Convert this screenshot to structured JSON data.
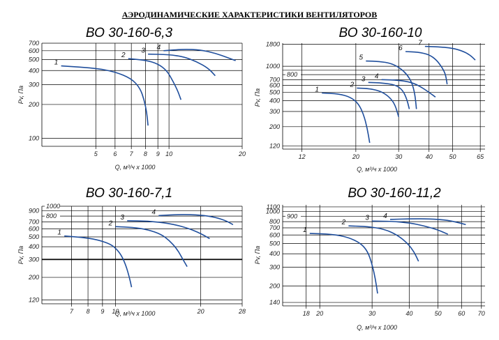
{
  "page_title": "АЭРОДИНАМИЧЕСКИЕ  ХАРАКТЕРИСТИКИ ВЕНТИЛЯТОРОВ",
  "colors": {
    "curve": "#1f4e9c",
    "grid": "#000000",
    "text": "#222222"
  },
  "chart_data": [
    {
      "type": "line",
      "title": "ВО 30-160-6,3",
      "xlabel": "Q, м³/ч х 1000",
      "ylabel": "Pv, Па",
      "x_scale": "log",
      "y_scale": "log",
      "xlim": [
        3,
        20
      ],
      "ylim": [
        85,
        700
      ],
      "x_ticks": [
        5,
        6,
        7,
        8,
        9,
        10,
        20
      ],
      "x_tick_labels": [
        "5",
        "6",
        "7",
        "8",
        "9",
        "10",
        "20"
      ],
      "y_ticks": [
        100,
        200,
        300,
        400,
        500,
        600,
        700
      ],
      "y_tick_labels": [
        "100",
        "200",
        "300",
        "400",
        "500",
        "600",
        "700"
      ],
      "y_lines_extra": [],
      "series": [
        {
          "name": "1",
          "points": [
            [
              3.6,
              440
            ],
            [
              5.0,
              420
            ],
            [
              6.0,
              390
            ],
            [
              7.0,
              340
            ],
            [
              7.6,
              280
            ],
            [
              7.9,
              220
            ],
            [
              8.1,
              170
            ],
            [
              8.2,
              130
            ]
          ]
        },
        {
          "name": "2",
          "points": [
            [
              6.8,
              510
            ],
            [
              8.0,
              495
            ],
            [
              9.0,
              460
            ],
            [
              9.8,
              400
            ],
            [
              10.4,
              320
            ],
            [
              10.9,
              260
            ],
            [
              11.2,
              220
            ]
          ]
        },
        {
          "name": "3",
          "points": [
            [
              8.2,
              560
            ],
            [
              10.0,
              555
            ],
            [
              11.5,
              530
            ],
            [
              13.0,
              480
            ],
            [
              14.5,
              420
            ],
            [
              15.5,
              360
            ]
          ]
        },
        {
          "name": "4",
          "points": [
            [
              9.5,
              600
            ],
            [
              11.5,
              620
            ],
            [
              13.5,
              610
            ],
            [
              15.5,
              570
            ],
            [
              17.5,
              520
            ],
            [
              18.8,
              490
            ]
          ]
        }
      ]
    },
    {
      "type": "line",
      "title": "ВО 30-160-10",
      "xlabel": "Q, м³/ч х 1000",
      "ylabel": "Pv, Па",
      "x_scale": "log",
      "y_scale": "log",
      "xlim": [
        10,
        68
      ],
      "ylim": [
        110,
        1850
      ],
      "x_ticks": [
        12,
        20,
        30,
        40,
        50,
        65
      ],
      "x_tick_labels": [
        "12",
        "20",
        "30",
        "40",
        "50",
        "65"
      ],
      "y_ticks": [
        120,
        200,
        300,
        400,
        500,
        600,
        700,
        1000,
        1800
      ],
      "y_tick_labels": [
        "120",
        "200",
        "300",
        "400",
        "500",
        "600",
        "700",
        "1000",
        "1800"
      ],
      "y_lines_extra": [
        {
          "value": 800,
          "label": "800"
        },
        {
          "value": 900,
          "label": ""
        }
      ],
      "series": [
        {
          "name": "1",
          "points": [
            [
              14.5,
              490
            ],
            [
              17.0,
              480
            ],
            [
              19.0,
              440
            ],
            [
              20.5,
              370
            ],
            [
              21.5,
              280
            ],
            [
              22.3,
              190
            ],
            [
              22.8,
              130
            ]
          ]
        },
        {
          "name": "2",
          "points": [
            [
              20.2,
              560
            ],
            [
              23.0,
              550
            ],
            [
              25.5,
              510
            ],
            [
              27.5,
              440
            ],
            [
              29.0,
              360
            ],
            [
              30.0,
              260
            ]
          ]
        },
        {
          "name": "3",
          "points": [
            [
              22.5,
              650
            ],
            [
              26.0,
              640
            ],
            [
              29.0,
              610
            ],
            [
              31.0,
              540
            ],
            [
              32.3,
              430
            ],
            [
              33.2,
              320
            ]
          ]
        },
        {
          "name": "4",
          "points": [
            [
              25.5,
              700
            ],
            [
              30.0,
              690
            ],
            [
              34.0,
              650
            ],
            [
              37.0,
              580
            ],
            [
              40.0,
              500
            ],
            [
              42.5,
              440
            ]
          ]
        },
        {
          "name": "5",
          "points": [
            [
              22.0,
              1150
            ],
            [
              25.0,
              1140
            ],
            [
              28.0,
              1080
            ],
            [
              30.5,
              950
            ],
            [
              32.5,
              800
            ],
            [
              34.0,
              650
            ],
            [
              35.0,
              480
            ],
            [
              35.5,
              320
            ]
          ]
        },
        {
          "name": "6",
          "points": [
            [
              32.0,
              1480
            ],
            [
              36.0,
              1460
            ],
            [
              40.0,
              1370
            ],
            [
              43.0,
              1180
            ],
            [
              45.5,
              950
            ],
            [
              46.8,
              800
            ],
            [
              47.5,
              620
            ]
          ]
        },
        {
          "name": "7",
          "points": [
            [
              38.5,
              1700
            ],
            [
              44.0,
              1680
            ],
            [
              50.0,
              1620
            ],
            [
              55.0,
              1500
            ],
            [
              59.0,
              1350
            ],
            [
              62.0,
              1180
            ]
          ]
        }
      ]
    },
    {
      "type": "line",
      "title": "ВО 30-160-7,1",
      "xlabel": "Q, м³/ч х 1000",
      "ylabel": "Pv, Па",
      "x_scale": "log",
      "y_scale": "log",
      "xlim": [
        5.5,
        28
      ],
      "ylim": [
        110,
        1000
      ],
      "x_ticks": [
        7,
        8,
        9,
        10,
        20,
        28
      ],
      "x_tick_labels": [
        "7",
        "8",
        "9",
        "10",
        "20",
        "28"
      ],
      "y_ticks": [
        120,
        200,
        300,
        400,
        500,
        600,
        700,
        900
      ],
      "y_tick_labels": [
        "120",
        "200",
        "300",
        "400",
        "500",
        "600",
        "700",
        "900"
      ],
      "y_lines_extra": [
        {
          "value": 1000,
          "label": "1000"
        },
        {
          "value": 800,
          "label": "800"
        }
      ],
      "y_bold_value": 300,
      "series": [
        {
          "name": "1",
          "points": [
            [
              6.6,
              510
            ],
            [
              7.6,
              495
            ],
            [
              8.6,
              470
            ],
            [
              9.5,
              430
            ],
            [
              10.0,
              390
            ],
            [
              10.5,
              330
            ],
            [
              10.9,
              260
            ],
            [
              11.2,
              200
            ],
            [
              11.4,
              160
            ]
          ]
        },
        {
          "name": "2",
          "points": [
            [
              10.0,
              630
            ],
            [
              11.5,
              620
            ],
            [
              13.0,
              590
            ],
            [
              14.5,
              530
            ],
            [
              15.5,
              460
            ],
            [
              16.5,
              380
            ],
            [
              17.3,
              300
            ],
            [
              17.9,
              255
            ]
          ]
        },
        {
          "name": "3",
          "points": [
            [
              11.0,
              720
            ],
            [
              13.0,
              715
            ],
            [
              15.5,
              680
            ],
            [
              18.0,
              610
            ],
            [
              20.0,
              540
            ],
            [
              21.5,
              480
            ]
          ]
        },
        {
          "name": "4",
          "points": [
            [
              14.2,
              810
            ],
            [
              17.0,
              830
            ],
            [
              20.0,
              820
            ],
            [
              22.5,
              780
            ],
            [
              24.5,
              720
            ],
            [
              26.0,
              660
            ]
          ]
        }
      ]
    },
    {
      "type": "line",
      "title": "ВО 30-160-11,2",
      "xlabel": "Q, м³/ч х 1000",
      "ylabel": "Pv, Па",
      "x_scale": "log",
      "y_scale": "log",
      "xlim": [
        15,
        72
      ],
      "ylim": [
        130,
        1150
      ],
      "x_ticks": [
        18,
        20,
        30,
        40,
        50,
        60,
        70
      ],
      "x_tick_labels": [
        "18",
        "20",
        "30",
        "40",
        "50",
        "60",
        "70"
      ],
      "y_ticks": [
        140,
        200,
        300,
        400,
        500,
        600,
        700,
        800,
        1000,
        1100
      ],
      "y_tick_labels": [
        "140",
        "200",
        "300",
        "400",
        "500",
        "600",
        "700",
        "800",
        "1000",
        "1100"
      ],
      "y_lines_extra": [
        {
          "value": 900,
          "label": "900"
        }
      ],
      "series": [
        {
          "name": "1",
          "points": [
            [
              18.5,
              620
            ],
            [
              22.0,
              610
            ],
            [
              25.0,
              570
            ],
            [
              27.5,
              500
            ],
            [
              29.0,
              420
            ],
            [
              30.0,
              320
            ],
            [
              30.8,
              230
            ],
            [
              31.3,
              170
            ]
          ]
        },
        {
          "name": "2",
          "points": [
            [
              25.0,
              730
            ],
            [
              29.0,
              720
            ],
            [
              33.0,
              680
            ],
            [
              36.5,
              600
            ],
            [
              39.5,
              500
            ],
            [
              41.5,
              420
            ],
            [
              43.0,
              340
            ]
          ]
        },
        {
          "name": "3",
          "points": [
            [
              30.0,
              810
            ],
            [
              35.0,
              805
            ],
            [
              40.0,
              780
            ],
            [
              45.0,
              730
            ],
            [
              50.0,
              670
            ],
            [
              54.0,
              610
            ]
          ]
        },
        {
          "name": "4",
          "points": [
            [
              34.5,
              840
            ],
            [
              40.0,
              850
            ],
            [
              47.0,
              850
            ],
            [
              53.0,
              830
            ],
            [
              58.0,
              790
            ],
            [
              62.0,
              750
            ]
          ]
        }
      ]
    }
  ]
}
